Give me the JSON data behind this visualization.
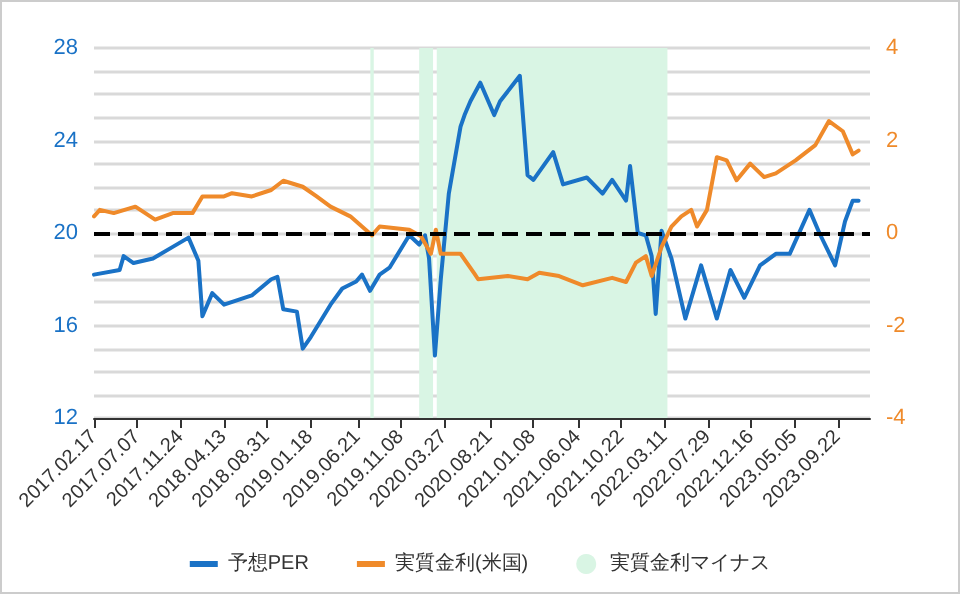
{
  "chart_data": {
    "type": "line",
    "xlim": [
      "2017-02-17",
      "2024-01-05"
    ],
    "xticks": [
      {
        "value": "2017-02-17",
        "label": "2017.02.17"
      },
      {
        "value": "2017-07-07",
        "label": "2017.07.07"
      },
      {
        "value": "2017-11-24",
        "label": "2017.11.24"
      },
      {
        "value": "2018-04-13",
        "label": "2018.04.13"
      },
      {
        "value": "2018-08-31",
        "label": "2018.08.31"
      },
      {
        "value": "2019-01-18",
        "label": "2019.01.18"
      },
      {
        "value": "2019-06-21",
        "label": "2019.06.21"
      },
      {
        "value": "2019-11-08",
        "label": "2019.11.08"
      },
      {
        "value": "2020-03-27",
        "label": "2020.03.27"
      },
      {
        "value": "2020-08-21",
        "label": "2020.08.21"
      },
      {
        "value": "2021-01-08",
        "label": "2021.01.08"
      },
      {
        "value": "2021-06-04",
        "label": "2021.06.04"
      },
      {
        "value": "2021-10-22",
        "label": "2021.10.22"
      },
      {
        "value": "2022-03-11",
        "label": "2022.03.11"
      },
      {
        "value": "2022-07-29",
        "label": "2022.07.29"
      },
      {
        "value": "2022-12-16",
        "label": "2022.12.16"
      },
      {
        "value": "2023-05-05",
        "label": "2023.05.05"
      },
      {
        "value": "2023-09-22",
        "label": "2023.09.22"
      }
    ],
    "ylim": [
      12,
      28
    ],
    "yticks": [
      12,
      {
        "value": 13,
        "label": null
      },
      {
        "value": 14,
        "label": null
      },
      {
        "value": 15,
        "label": null
      },
      16,
      {
        "value": 17,
        "label": null
      },
      {
        "value": 18,
        "label": null
      },
      {
        "value": 19,
        "label": null
      },
      20,
      {
        "value": 21,
        "label": null
      },
      {
        "value": 22,
        "label": null
      },
      {
        "value": 23,
        "label": null
      },
      24,
      {
        "value": 25,
        "label": null
      },
      {
        "value": 26,
        "label": null
      },
      {
        "value": 27,
        "label": null
      },
      28
    ],
    "y2lim": [
      -4,
      4
    ],
    "y2ticks": [
      -4,
      -2,
      0,
      2,
      4
    ],
    "grid": "y",
    "legend": "bottom",
    "series": [
      {
        "name": "予想PER",
        "color": "#1a72c6",
        "x": [
          "2017-02-17",
          "2017-05-11",
          "2017-05-24",
          "2017-06-25",
          "2017-08-27",
          "2017-10-30",
          "2017-12-20",
          "2018-01-21",
          "2018-02-03",
          "2018-03-07",
          "2018-04-14",
          "2018-07-13",
          "2018-09-14",
          "2018-10-04",
          "2018-10-23",
          "2018-12-06",
          "2018-12-25",
          "2019-01-20",
          "2019-03-25",
          "2019-05-02",
          "2019-06-16",
          "2019-07-05",
          "2019-07-31",
          "2019-08-31",
          "2019-10-02",
          "2019-12-05",
          "2020-01-06",
          "2020-01-25",
          "2020-02-07",
          "2020-02-26",
          "2020-03-16",
          "2020-04-11",
          "2020-05-19",
          "2020-06-01",
          "2020-06-20",
          "2020-07-22",
          "2020-09-05",
          "2020-09-24",
          "2020-11-27",
          "2020-12-22",
          "2021-01-10",
          "2021-03-15",
          "2021-04-16",
          "2021-07-02",
          "2021-08-22",
          "2021-09-22",
          "2021-11-06",
          "2021-11-19",
          "2021-12-14",
          "2022-01-09",
          "2022-01-28",
          "2022-02-10",
          "2022-03-01",
          "2022-04-02",
          "2022-05-17",
          "2022-07-07",
          "2022-08-27",
          "2022-10-10",
          "2022-11-24",
          "2023-01-14",
          "2023-03-06",
          "2023-04-20",
          "2023-06-23",
          "2023-07-25",
          "2023-09-14",
          "2023-10-16",
          "2023-11-10",
          "2023-11-29"
        ],
        "values": [
          18.2,
          18.4,
          19.0,
          18.7,
          18.9,
          19.4,
          19.8,
          18.8,
          16.4,
          17.4,
          16.9,
          17.3,
          18.0,
          18.1,
          16.7,
          16.6,
          15.0,
          15.5,
          16.9,
          17.6,
          17.9,
          18.2,
          17.5,
          18.2,
          18.5,
          19.9,
          19.5,
          19.9,
          18.9,
          14.7,
          18.0,
          21.7,
          24.6,
          25.1,
          25.7,
          26.5,
          25.1,
          25.7,
          26.8,
          22.5,
          22.3,
          23.5,
          22.1,
          22.4,
          21.7,
          22.3,
          21.4,
          22.9,
          20.0,
          19.9,
          19.0,
          16.5,
          20.1,
          18.9,
          16.3,
          18.6,
          16.3,
          18.4,
          17.2,
          18.6,
          19.1,
          19.1,
          21.0,
          20.0,
          18.6,
          20.5,
          21.4,
          21.4
        ]
      },
      {
        "name": "実質金利(米国)",
        "color": "#ef8a2a",
        "axis": "y2",
        "x": [
          "2017-02-17",
          "2017-03-08",
          "2017-04-22",
          "2017-07-01",
          "2017-09-03",
          "2017-10-30",
          "2018-01-02",
          "2018-02-03",
          "2018-04-14",
          "2018-05-10",
          "2018-07-13",
          "2018-09-14",
          "2018-10-23",
          "2018-12-25",
          "2019-02-08",
          "2019-03-25",
          "2019-05-28",
          "2019-08-06",
          "2019-08-31",
          "2019-12-05",
          "2020-01-12",
          "2020-02-13",
          "2020-02-29",
          "2020-03-16",
          "2020-05-19",
          "2020-07-03",
          "2020-07-15",
          "2020-10-19",
          "2020-12-22",
          "2021-01-29",
          "2021-04-03",
          "2021-06-19",
          "2021-09-22",
          "2021-11-06",
          "2021-12-08",
          "2022-01-09",
          "2022-01-28",
          "2022-03-01",
          "2022-04-02",
          "2022-05-04",
          "2022-06-05",
          "2022-06-24",
          "2022-07-26",
          "2022-08-27",
          "2022-09-28",
          "2022-10-30",
          "2022-12-13",
          "2023-01-27",
          "2023-03-06",
          "2023-05-09",
          "2023-07-12",
          "2023-08-25",
          "2023-10-09",
          "2023-11-10",
          "2023-11-29"
        ],
        "values": [
          0.36,
          0.5,
          0.43,
          0.57,
          0.29,
          0.43,
          0.43,
          0.79,
          0.79,
          0.86,
          0.79,
          0.93,
          1.13,
          1.0,
          0.79,
          0.57,
          0.36,
          -0.05,
          0.14,
          0.07,
          -0.07,
          -0.45,
          0.07,
          -0.45,
          -0.45,
          -0.88,
          -1.0,
          -0.93,
          -1.0,
          -0.86,
          -0.93,
          -1.13,
          -0.97,
          -1.06,
          -0.64,
          -0.5,
          -0.93,
          -0.3,
          0.14,
          0.36,
          0.5,
          0.14,
          0.5,
          1.64,
          1.57,
          1.14,
          1.5,
          1.21,
          1.29,
          1.57,
          1.9,
          2.42,
          2.2,
          1.7,
          1.78
        ]
      }
    ],
    "bands": [
      {
        "axis": "x",
        "from": "2019-08-01",
        "to": "2019-08-12",
        "label": "実質金利マイナス",
        "color": "#d9f5e4"
      },
      {
        "axis": "x",
        "from": "2020-01-06",
        "to": "2020-02-20",
        "color": "#d9f5e4"
      },
      {
        "axis": "x",
        "from": "2020-03-03",
        "to": "2022-03-20",
        "color": "#d9f5e4"
      }
    ],
    "ref_lines": [
      {
        "axis": "y",
        "value": 20,
        "color": "#000000",
        "line_style": "dashed"
      }
    ]
  }
}
